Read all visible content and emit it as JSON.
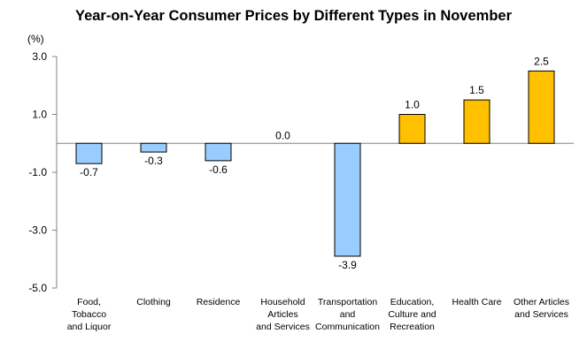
{
  "chart_data": {
    "type": "bar",
    "title": "Year-on-Year Consumer Prices by Different  Types in November",
    "ylabel": "(%)",
    "xlabel": "",
    "ylim": [
      -5.0,
      3.0
    ],
    "yticks": [
      3.0,
      1.0,
      -1.0,
      -3.0,
      -5.0
    ],
    "ytick_labels": [
      "3.0",
      "1.0",
      "-1.0",
      "-3.0",
      "-5.0"
    ],
    "grid": false,
    "categories": [
      [
        "Food,",
        "Tobacco",
        "and Liquor"
      ],
      [
        "Clothing"
      ],
      [
        "Residence"
      ],
      [
        "Household",
        "Articles",
        "and Services"
      ],
      [
        "Transportation",
        "and",
        "Communication"
      ],
      [
        "Education,",
        "Culture and",
        "Recreation"
      ],
      [
        "Health Care"
      ],
      [
        "Other Articles",
        "and Services"
      ]
    ],
    "values": [
      -0.7,
      -0.3,
      -0.6,
      0.0,
      -3.9,
      1.0,
      1.5,
      2.5
    ],
    "value_labels": [
      "-0.7",
      "-0.3",
      "-0.6",
      "0.0",
      "-3.9",
      "1.0",
      "1.5",
      "2.5"
    ],
    "colors": {
      "negative": "#99CCFF",
      "positive": "#FFC000",
      "outline": "#000000",
      "axis": "#808080"
    }
  }
}
